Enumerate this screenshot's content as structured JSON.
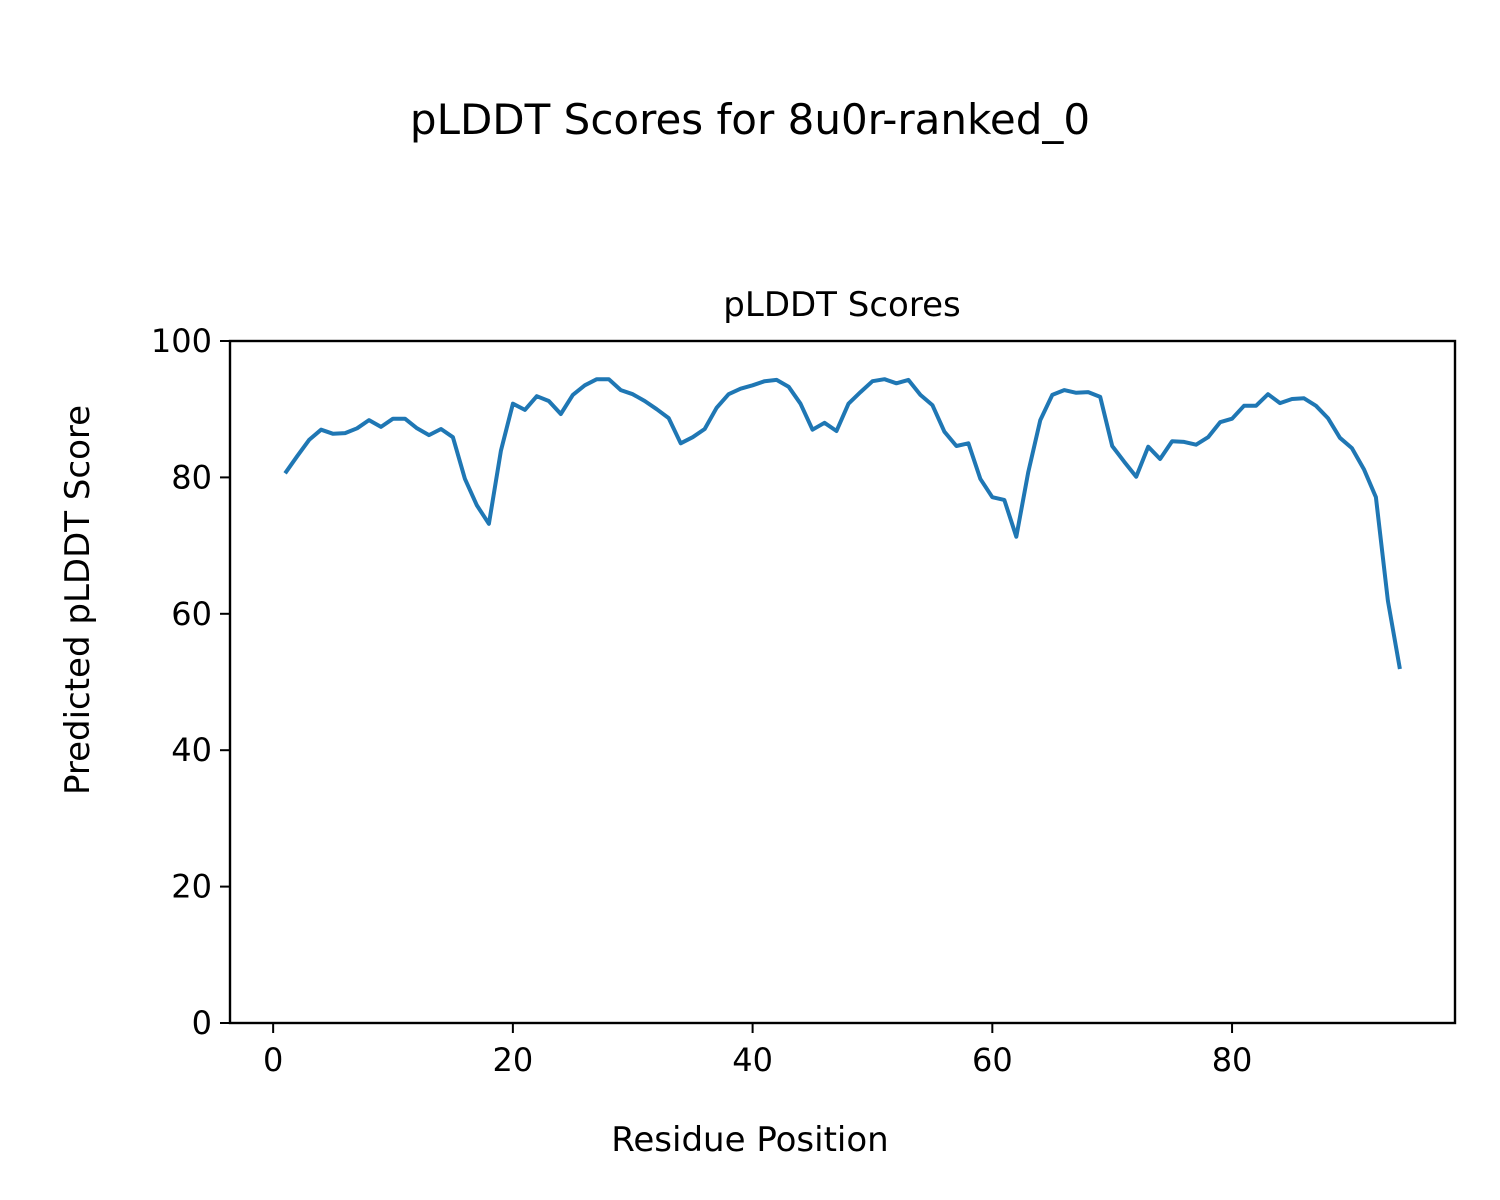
{
  "chart_data": {
    "type": "line",
    "suptitle": "pLDDT Scores for 8u0r-ranked_0",
    "title": "pLDDT Scores",
    "xlabel": "Residue Position",
    "ylabel": "Predicted pLDDT Score",
    "xlim": [
      -3.6,
      98.6
    ],
    "ylim": [
      0,
      100
    ],
    "xticks": [
      0,
      20,
      40,
      60,
      80
    ],
    "yticks": [
      0,
      20,
      40,
      60,
      80,
      100
    ],
    "grid": false,
    "line_color": "#1f77b4",
    "x": [
      1,
      2,
      3,
      4,
      5,
      6,
      7,
      8,
      9,
      10,
      11,
      12,
      13,
      14,
      15,
      16,
      17,
      18,
      19,
      20,
      21,
      22,
      23,
      24,
      25,
      26,
      27,
      28,
      29,
      30,
      31,
      32,
      33,
      34,
      35,
      36,
      37,
      38,
      39,
      40,
      41,
      42,
      43,
      44,
      45,
      46,
      47,
      48,
      49,
      50,
      51,
      52,
      53,
      54,
      55,
      56,
      57,
      58,
      59,
      60,
      61,
      62,
      63,
      64,
      65,
      66,
      67,
      68,
      69,
      70,
      71,
      72,
      73,
      74,
      75,
      76,
      77,
      78,
      79,
      80,
      81,
      82,
      83,
      84,
      85,
      86,
      87,
      88,
      89,
      90,
      91,
      92,
      93,
      94
    ],
    "y": [
      80.6,
      83.1,
      85.5,
      87.0,
      86.4,
      86.5,
      87.2,
      88.4,
      87.4,
      88.6,
      88.6,
      87.2,
      86.2,
      87.1,
      85.9,
      79.8,
      75.9,
      73.2,
      83.9,
      90.8,
      89.9,
      91.9,
      91.2,
      89.3,
      92.1,
      93.5,
      94.4,
      94.4,
      92.8,
      92.2,
      91.2,
      90.0,
      88.7,
      85.0,
      85.9,
      87.1,
      90.2,
      92.2,
      93.0,
      93.5,
      94.1,
      94.3,
      93.3,
      90.8,
      87.0,
      88.0,
      86.8,
      90.8,
      92.5,
      94.1,
      94.4,
      93.8,
      94.3,
      92.1,
      90.6,
      86.7,
      84.6,
      85.0,
      79.8,
      77.1,
      76.7,
      71.3,
      80.8,
      88.4,
      92.1,
      92.8,
      92.4,
      92.5,
      91.8,
      84.6,
      82.3,
      80.1,
      84.5,
      82.7,
      85.3,
      85.2,
      84.8,
      85.9,
      88.1,
      88.6,
      90.5,
      90.5,
      92.2,
      90.9,
      91.5,
      91.6,
      90.5,
      88.7,
      85.8,
      84.3,
      81.2,
      77.1,
      61.9,
      51.9
    ]
  }
}
